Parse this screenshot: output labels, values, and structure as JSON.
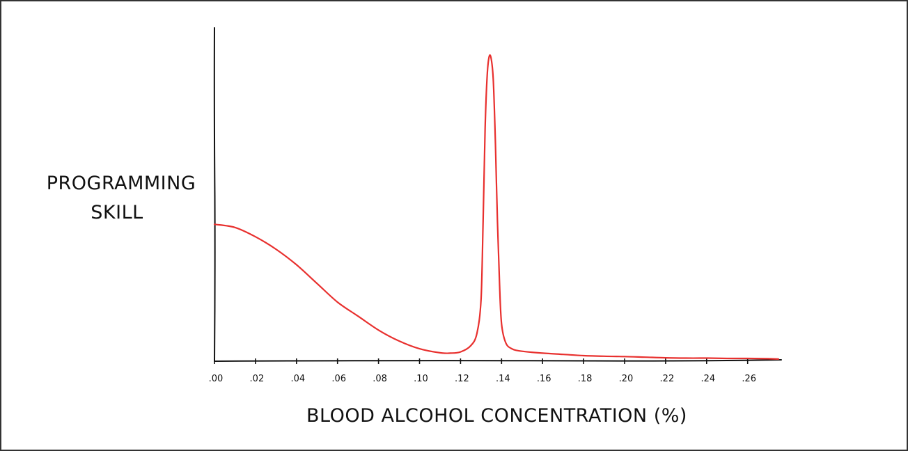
{
  "chart_data": {
    "type": "line",
    "xlabel": "BLOOD ALCOHOL CONCENTRATION (%)",
    "ylabel_lines": [
      "PROGRAMMING",
      "SKILL"
    ],
    "x_ticks": [
      {
        "value": 0.0,
        "label": ".00"
      },
      {
        "value": 0.02,
        "label": ".02"
      },
      {
        "value": 0.04,
        "label": ".04"
      },
      {
        "value": 0.06,
        "label": ".06"
      },
      {
        "value": 0.08,
        "label": ".08"
      },
      {
        "value": 0.1,
        "label": ".10"
      },
      {
        "value": 0.12,
        "label": ".12"
      },
      {
        "value": 0.14,
        "label": ".14"
      },
      {
        "value": 0.16,
        "label": ".16"
      },
      {
        "value": 0.18,
        "label": ".18"
      },
      {
        "value": 0.2,
        "label": ".20"
      },
      {
        "value": 0.22,
        "label": ".22"
      },
      {
        "value": 0.24,
        "label": ".24"
      },
      {
        "value": 0.26,
        "label": ".26"
      }
    ],
    "xlim": [
      0,
      0.275
    ],
    "ylim": [
      0,
      1
    ],
    "y_ticks_shown": false,
    "grid": false,
    "legend": "none",
    "line_color": "#e8302e",
    "series": [
      {
        "x": [
          0.0,
          0.01,
          0.02,
          0.03,
          0.04,
          0.05,
          0.06,
          0.07,
          0.08,
          0.09,
          0.1,
          0.11,
          0.115,
          0.12,
          0.125,
          0.128,
          0.13,
          0.131,
          0.132,
          0.133,
          0.134,
          0.135,
          0.136,
          0.137,
          0.138,
          0.139,
          0.14,
          0.142,
          0.145,
          0.15,
          0.16,
          0.17,
          0.18,
          0.19,
          0.2,
          0.21,
          0.22,
          0.23,
          0.24,
          0.25,
          0.26,
          0.27,
          0.275
        ],
        "y": [
          0.44,
          0.43,
          0.4,
          0.36,
          0.31,
          0.25,
          0.19,
          0.145,
          0.1,
          0.065,
          0.04,
          0.027,
          0.026,
          0.03,
          0.05,
          0.09,
          0.2,
          0.45,
          0.75,
          0.92,
          0.98,
          0.97,
          0.9,
          0.7,
          0.45,
          0.25,
          0.12,
          0.06,
          0.04,
          0.032,
          0.026,
          0.022,
          0.018,
          0.016,
          0.015,
          0.013,
          0.011,
          0.01,
          0.01,
          0.009,
          0.009,
          0.008,
          0.007
        ]
      }
    ]
  }
}
